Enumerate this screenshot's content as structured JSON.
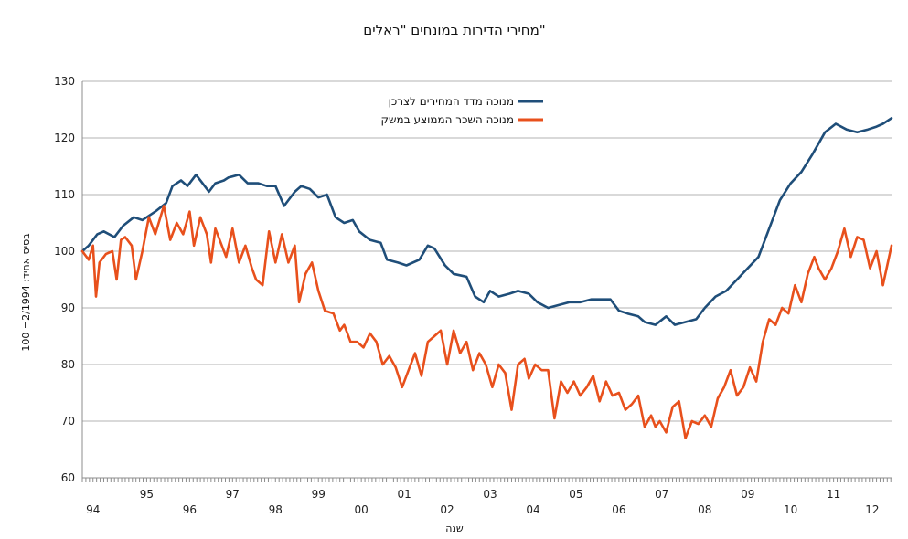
{
  "chart_data": {
    "type": "line",
    "title": "מחירי הדירות במונחים \"ראלים\"",
    "xlabel": "שנה",
    "ylabel": "בסיס אחיד: 2/1994= 100",
    "ylim": [
      60,
      130
    ],
    "yticks": [
      "60",
      "70",
      "80",
      "90",
      "100",
      "110",
      "120",
      "130"
    ],
    "xlim": [
      1994.0,
      2012.85
    ],
    "grid": true,
    "legend_position": "top-center",
    "year_labels_row1": [
      "95",
      "97",
      "99",
      "01",
      "03",
      "05",
      "07",
      "09",
      "11"
    ],
    "year_labels_row2": [
      "94",
      "96",
      "98",
      "00",
      "02",
      "04",
      "06",
      "08",
      "10",
      "12"
    ],
    "series": [
      {
        "name": "מנוכה מדד המחירים לצרכן",
        "color": "#1f4e79",
        "x": [
          1994.0,
          1994.15,
          1994.35,
          1994.5,
          1994.75,
          1994.95,
          1995.2,
          1995.4,
          1995.7,
          1995.95,
          1996.1,
          1996.3,
          1996.45,
          1996.65,
          1996.8,
          1996.95,
          1997.1,
          1997.3,
          1997.4,
          1997.65,
          1997.85,
          1998.1,
          1998.3,
          1998.5,
          1998.7,
          1998.95,
          1999.1,
          1999.3,
          1999.5,
          1999.7,
          1999.9,
          2000.1,
          2000.3,
          2000.45,
          2000.7,
          2000.95,
          2001.1,
          2001.35,
          2001.55,
          2001.85,
          2002.05,
          2002.2,
          2002.45,
          2002.65,
          2002.95,
          2003.15,
          2003.35,
          2003.5,
          2003.7,
          2003.95,
          2004.15,
          2004.4,
          2004.6,
          2004.85,
          2005.1,
          2005.35,
          2005.6,
          2005.85,
          2006.05,
          2006.3,
          2006.5,
          2006.7,
          2006.95,
          2007.1,
          2007.35,
          2007.6,
          2007.8,
          2008.05,
          2008.3,
          2008.5,
          2008.75,
          2009.0,
          2009.25,
          2009.5,
          2009.75,
          2010.0,
          2010.25,
          2010.5,
          2010.75,
          2011.0,
          2011.15,
          2011.3,
          2011.55,
          2011.8,
          2012.05,
          2012.3,
          2012.5,
          2012.65,
          2012.85
        ],
        "values": [
          100,
          101,
          103,
          103.5,
          102.5,
          104.5,
          106,
          105.5,
          107,
          108.5,
          111.5,
          112.5,
          111.5,
          113.5,
          112,
          110.5,
          112,
          112.5,
          113,
          113.5,
          112,
          112,
          111.5,
          111.5,
          108,
          110.5,
          111.5,
          111,
          109.5,
          110,
          106,
          105,
          105.5,
          103.5,
          102,
          101.5,
          98.5,
          98,
          97.5,
          98.5,
          101,
          100.5,
          97.5,
          96,
          95.5,
          92,
          91,
          93,
          92,
          92.5,
          93,
          92.5,
          91,
          90,
          90.5,
          91,
          91,
          91.5,
          91.5,
          91.5,
          89.5,
          89,
          88.5,
          87.5,
          87,
          88.5,
          87,
          87.5,
          88,
          90,
          92,
          93,
          95,
          97,
          99,
          104,
          109,
          112,
          114,
          117,
          119,
          121,
          122.5,
          121.5,
          121,
          121.5,
          122,
          122.5,
          123.5
        ]
      },
      {
        "name": "מנוכה השכר הממוצע במשק",
        "color": "#e8501c",
        "x": [
          1994.0,
          1994.15,
          1994.25,
          1994.32,
          1994.4,
          1994.55,
          1994.7,
          1994.8,
          1994.9,
          1995.0,
          1995.15,
          1995.25,
          1995.4,
          1995.55,
          1995.7,
          1995.9,
          1996.05,
          1996.2,
          1996.35,
          1996.5,
          1996.6,
          1996.75,
          1996.9,
          1997.0,
          1997.1,
          1997.25,
          1997.35,
          1997.5,
          1997.65,
          1997.8,
          1997.95,
          1998.05,
          1998.2,
          1998.35,
          1998.5,
          1998.65,
          1998.8,
          1998.95,
          1999.05,
          1999.2,
          1999.35,
          1999.5,
          1999.65,
          1999.85,
          2000.0,
          2000.1,
          2000.25,
          2000.4,
          2000.55,
          2000.7,
          2000.85,
          2001.0,
          2001.15,
          2001.3,
          2001.45,
          2001.6,
          2001.75,
          2001.9,
          2002.05,
          2002.2,
          2002.35,
          2002.5,
          2002.65,
          2002.8,
          2002.95,
          2003.1,
          2003.25,
          2003.4,
          2003.55,
          2003.7,
          2003.85,
          2004.0,
          2004.15,
          2004.3,
          2004.4,
          2004.55,
          2004.7,
          2004.85,
          2005.0,
          2005.15,
          2005.3,
          2005.45,
          2005.6,
          2005.75,
          2005.9,
          2006.05,
          2006.2,
          2006.35,
          2006.5,
          2006.65,
          2006.8,
          2006.95,
          2007.1,
          2007.25,
          2007.35,
          2007.45,
          2007.6,
          2007.75,
          2007.9,
          2008.05,
          2008.2,
          2008.35,
          2008.5,
          2008.65,
          2008.8,
          2008.95,
          2009.1,
          2009.25,
          2009.4,
          2009.55,
          2009.7,
          2009.85,
          2010.0,
          2010.15,
          2010.3,
          2010.45,
          2010.6,
          2010.75,
          2010.9,
          2011.05,
          2011.15,
          2011.3,
          2011.45,
          2011.6,
          2011.75,
          2011.9,
          2012.05,
          2012.2,
          2012.35,
          2012.5,
          2012.65,
          2012.85
        ],
        "values": [
          100,
          98.5,
          101,
          92,
          98,
          99.5,
          100,
          95,
          102,
          102.5,
          101,
          95,
          100,
          106,
          103,
          108,
          102,
          105,
          103,
          107,
          101,
          106,
          103,
          98,
          104,
          101,
          99,
          104,
          98,
          101,
          97,
          95,
          94,
          103.5,
          98,
          103,
          98,
          101,
          91,
          96,
          98,
          93,
          89.5,
          89,
          86,
          87,
          84,
          84,
          83,
          85.5,
          84,
          80,
          81.5,
          79.5,
          76,
          79,
          82,
          78,
          84,
          85,
          86,
          80,
          86,
          82,
          84,
          79,
          82,
          80,
          76,
          80,
          78.5,
          72,
          80,
          81,
          77.5,
          80,
          79,
          79,
          70.5,
          77,
          75,
          77,
          74.5,
          76,
          78,
          73.5,
          77,
          74.5,
          75,
          72,
          73,
          74.5,
          69,
          71,
          69,
          70,
          68,
          72.5,
          73.5,
          67,
          70,
          69.5,
          71,
          69,
          74,
          76,
          79,
          74.5,
          76,
          79.5,
          77,
          84,
          88,
          87,
          90,
          89,
          94,
          91,
          96,
          99,
          97,
          95,
          97,
          100,
          104,
          99,
          102.5,
          102,
          97,
          100,
          94,
          101
        ]
      }
    ]
  }
}
